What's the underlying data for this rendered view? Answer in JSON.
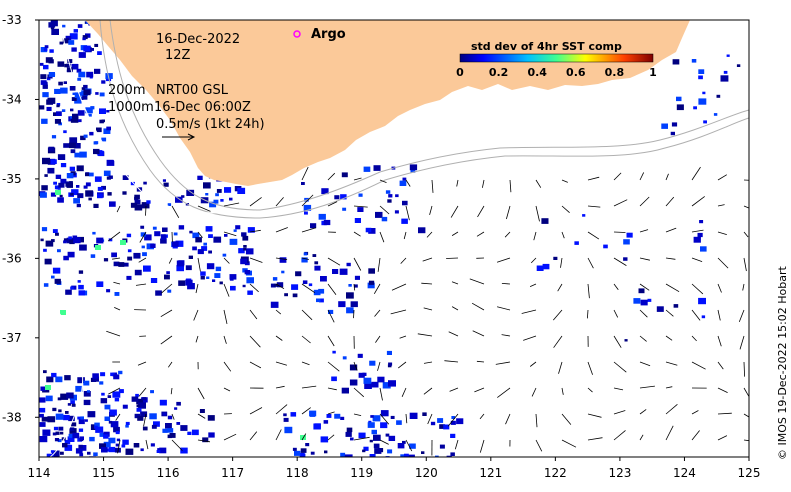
{
  "map": {
    "lon_ticks": [
      "114",
      "115",
      "116",
      "117",
      "118",
      "119",
      "120",
      "121",
      "122",
      "123",
      "124",
      "125"
    ],
    "lat_ticks": [
      "-33",
      "-34",
      "-35",
      "-36",
      "-37",
      "-38"
    ],
    "lon_range": [
      114,
      125
    ],
    "lat_range": [
      -38.5,
      -33
    ],
    "date_line1": "16-Dec-2022",
    "date_line2": "12Z",
    "product_line": "NRT00 GSL",
    "isobath_200": "200m",
    "isobath_1000": "1000m",
    "timestamp": "16-Dec 06:00Z",
    "scale_label": "0.5m/s (1kt 24h)",
    "argo_label": "Argo",
    "colors": {
      "land": "#fbc999",
      "argo": "#ff00ff"
    }
  },
  "colorbar": {
    "title": "std dev of 4hr SST comp",
    "ticks": [
      "0",
      "0.2",
      "0.4",
      "0.6",
      "0.8",
      "1"
    ],
    "range": [
      0,
      1
    ],
    "stops": [
      "#00007f",
      "#0000ff",
      "#007fff",
      "#00ffff",
      "#7fff7f",
      "#ffff00",
      "#ff7f00",
      "#ff0000",
      "#7f0000"
    ]
  },
  "credit": "© IMOS 19-Dec-2022 15:02 Hobart"
}
